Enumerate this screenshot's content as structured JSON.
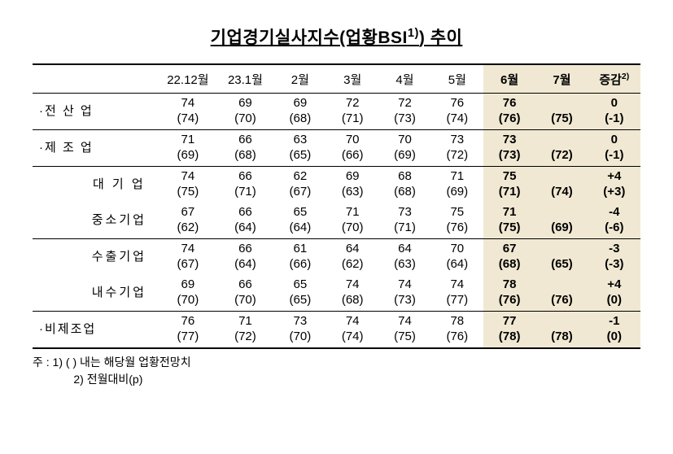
{
  "title_html": "기업경기실사지수(업황BSI<sup>1)</sup>) 추이",
  "headers": [
    "22.12월",
    "23.1월",
    "2월",
    "3월",
    "4월",
    "5월",
    "6월",
    "7월",
    "증감"
  ],
  "header_sup": "2)",
  "rows": [
    {
      "label": "·전 산 업",
      "sublabel": "",
      "level": 0,
      "border": "b",
      "cells": [
        {
          "t": "74",
          "b": "(74)",
          "h": false
        },
        {
          "t": "69",
          "b": "(70)",
          "h": false
        },
        {
          "t": "69",
          "b": "(68)",
          "h": false
        },
        {
          "t": "72",
          "b": "(71)",
          "h": false
        },
        {
          "t": "72",
          "b": "(73)",
          "h": false
        },
        {
          "t": "76",
          "b": "(74)",
          "h": false
        },
        {
          "t": "76",
          "b": "(76)",
          "h": true
        },
        {
          "t": "",
          "b": "(75)",
          "h": true
        },
        {
          "t": "0",
          "b": "(-1)",
          "h": true
        }
      ]
    },
    {
      "label": "·제 조 업",
      "sublabel": "",
      "level": 0,
      "border": "b",
      "cells": [
        {
          "t": "71",
          "b": "(69)",
          "h": false
        },
        {
          "t": "66",
          "b": "(68)",
          "h": false
        },
        {
          "t": "63",
          "b": "(65)",
          "h": false
        },
        {
          "t": "70",
          "b": "(66)",
          "h": false
        },
        {
          "t": "70",
          "b": "(69)",
          "h": false
        },
        {
          "t": "73",
          "b": "(72)",
          "h": false
        },
        {
          "t": "73",
          "b": "(73)",
          "h": true
        },
        {
          "t": "",
          "b": "(72)",
          "h": true
        },
        {
          "t": "0",
          "b": "(-1)",
          "h": true
        }
      ]
    },
    {
      "label": "",
      "sublabel": "대 기 업",
      "level": 1,
      "border": "",
      "cells": [
        {
          "t": "74",
          "b": "(75)",
          "h": false
        },
        {
          "t": "66",
          "b": "(71)",
          "h": false
        },
        {
          "t": "62",
          "b": "(67)",
          "h": false
        },
        {
          "t": "69",
          "b": "(63)",
          "h": false
        },
        {
          "t": "68",
          "b": "(68)",
          "h": false
        },
        {
          "t": "71",
          "b": "(69)",
          "h": false
        },
        {
          "t": "75",
          "b": "(71)",
          "h": true
        },
        {
          "t": "",
          "b": "(74)",
          "h": true
        },
        {
          "t": "+4",
          "b": "(+3)",
          "h": true
        }
      ]
    },
    {
      "label": "",
      "sublabel": "중소기업",
      "level": 1,
      "border": "b",
      "cells": [
        {
          "t": "67",
          "b": "(62)",
          "h": false
        },
        {
          "t": "66",
          "b": "(64)",
          "h": false
        },
        {
          "t": "65",
          "b": "(64)",
          "h": false
        },
        {
          "t": "71",
          "b": "(70)",
          "h": false
        },
        {
          "t": "73",
          "b": "(71)",
          "h": false
        },
        {
          "t": "75",
          "b": "(76)",
          "h": false
        },
        {
          "t": "71",
          "b": "(75)",
          "h": true
        },
        {
          "t": "",
          "b": "(69)",
          "h": true
        },
        {
          "t": "-4",
          "b": "(-6)",
          "h": true
        }
      ]
    },
    {
      "label": "",
      "sublabel": "수출기업",
      "level": 1,
      "border": "",
      "cells": [
        {
          "t": "74",
          "b": "(67)",
          "h": false
        },
        {
          "t": "66",
          "b": "(64)",
          "h": false
        },
        {
          "t": "61",
          "b": "(66)",
          "h": false
        },
        {
          "t": "64",
          "b": "(62)",
          "h": false
        },
        {
          "t": "64",
          "b": "(63)",
          "h": false
        },
        {
          "t": "70",
          "b": "(64)",
          "h": false
        },
        {
          "t": "67",
          "b": "(68)",
          "h": true
        },
        {
          "t": "",
          "b": "(65)",
          "h": true
        },
        {
          "t": "-3",
          "b": "(-3)",
          "h": true
        }
      ]
    },
    {
      "label": "",
      "sublabel": "내수기업",
      "level": 1,
      "border": "b",
      "cells": [
        {
          "t": "69",
          "b": "(70)",
          "h": false
        },
        {
          "t": "66",
          "b": "(70)",
          "h": false
        },
        {
          "t": "65",
          "b": "(65)",
          "h": false
        },
        {
          "t": "74",
          "b": "(68)",
          "h": false
        },
        {
          "t": "74",
          "b": "(73)",
          "h": false
        },
        {
          "t": "74",
          "b": "(77)",
          "h": false
        },
        {
          "t": "78",
          "b": "(76)",
          "h": true
        },
        {
          "t": "",
          "b": "(76)",
          "h": true
        },
        {
          "t": "+4",
          "b": "(0)",
          "h": true
        }
      ]
    },
    {
      "label": "·비제조업",
      "sublabel": "",
      "level": 0,
      "border": "thick",
      "cells": [
        {
          "t": "76",
          "b": "(77)",
          "h": false
        },
        {
          "t": "71",
          "b": "(72)",
          "h": false
        },
        {
          "t": "73",
          "b": "(70)",
          "h": false
        },
        {
          "t": "74",
          "b": "(74)",
          "h": false
        },
        {
          "t": "74",
          "b": "(75)",
          "h": false
        },
        {
          "t": "78",
          "b": "(76)",
          "h": false
        },
        {
          "t": "77",
          "b": "(78)",
          "h": true
        },
        {
          "t": "",
          "b": "(78)",
          "h": true
        },
        {
          "t": "-1",
          "b": "(0)",
          "h": true
        }
      ]
    }
  ],
  "footnote_lead": "주 : 1) (   ) 내는 해당월 업황전망치",
  "footnote_line2": "2) 전월대비(p)"
}
